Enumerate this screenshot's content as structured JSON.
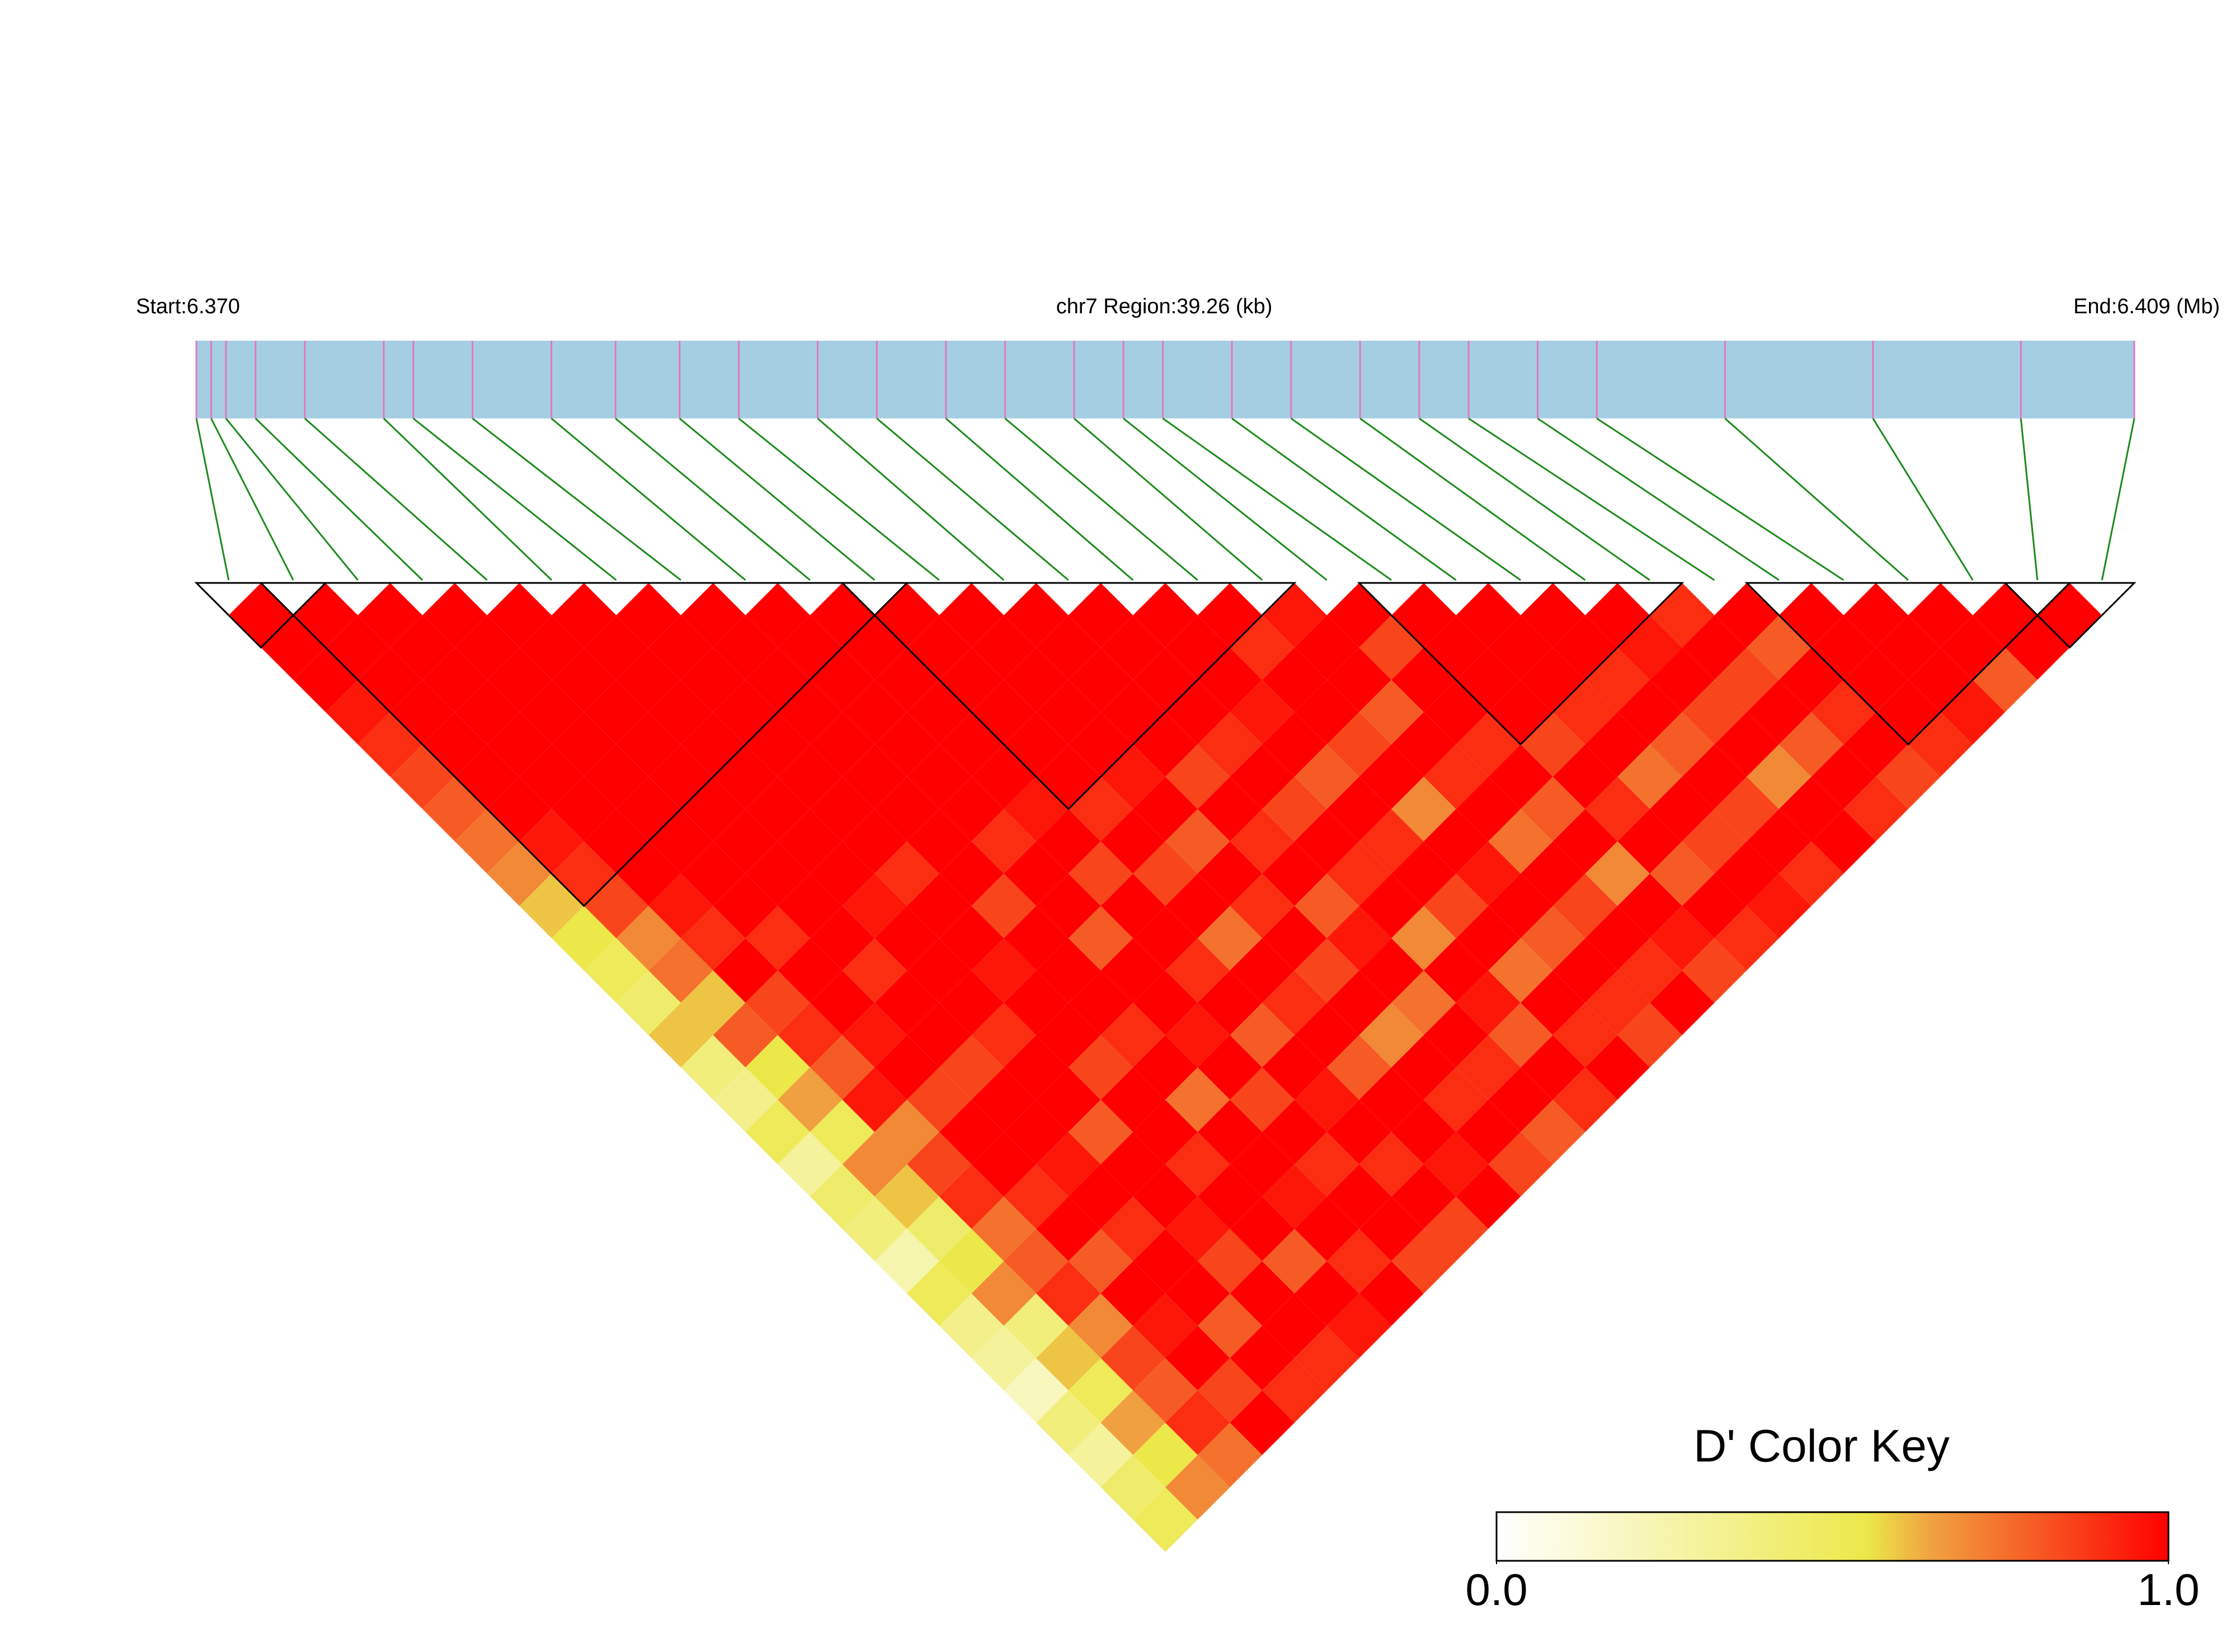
{
  "chart_data": {
    "type": "ld_heatmap",
    "chromosome_label": "chr7 Region:39.26 (kb)",
    "start_label": "Start:6.370",
    "end_label": "End:6.409 (Mb)",
    "xlim": [
      6.37,
      6.4093
    ],
    "positions": [
      6.37,
      6.3703,
      6.3706,
      6.3712,
      6.3722,
      6.3738,
      6.3744,
      6.3756,
      6.3772,
      6.3785,
      6.3798,
      6.381,
      6.3826,
      6.3838,
      6.3852,
      6.3864,
      6.3878,
      6.3888,
      6.3896,
      6.391,
      6.3922,
      6.3936,
      6.3948,
      6.3958,
      6.3972,
      6.3984,
      6.401,
      6.404,
      6.407,
      6.4093
    ],
    "bar_color": "#a6cee3",
    "tick_color": "#e377c2",
    "connector_color": "#1a8a1a",
    "dprime": [
      [
        1,
        1,
        1,
        0.95,
        0.9,
        0.85,
        0.8,
        0.75,
        0.7,
        0.6,
        0.55,
        0.5,
        0.45,
        0.6,
        0.4,
        0.35,
        0.5,
        0.3,
        0.45,
        0.4,
        0.25,
        0.5,
        0.35,
        0.3,
        0.2,
        0.4,
        0.3,
        0.45,
        0.5
      ],
      [
        1,
        1,
        1,
        1,
        1,
        1,
        1,
        0.95,
        0.9,
        0.85,
        0.7,
        0.75,
        0.6,
        0.8,
        0.55,
        0.65,
        0.5,
        0.7,
        0.6,
        0.45,
        0.55,
        0.7,
        0.4,
        0.6,
        0.5,
        0.65,
        0.55,
        0.7
      ],
      [
        1,
        1,
        1,
        1,
        1,
        1,
        1,
        1,
        1,
        0.95,
        0.9,
        1,
        0.85,
        0.9,
        0.8,
        0.95,
        0.7,
        0.85,
        0.9,
        0.75,
        0.8,
        0.9,
        0.7,
        0.85,
        0.8,
        0.9,
        0.75
      ],
      [
        1,
        1,
        1,
        1,
        1,
        1,
        1,
        1,
        1,
        1,
        0.9,
        1,
        1,
        0.95,
        1,
        0.85,
        1,
        1,
        0.9,
        1,
        0.8,
        1,
        0.95,
        1,
        0.85,
        1
      ],
      [
        1,
        1,
        1,
        1,
        1,
        1,
        1,
        1,
        1,
        1,
        1,
        0.9,
        1,
        1,
        0.85,
        1,
        1,
        0.95,
        1,
        0.9,
        1,
        1,
        0.8,
        1,
        0.9
      ],
      [
        1,
        1,
        1,
        1,
        1,
        1,
        1,
        1,
        1,
        0.95,
        1,
        1,
        1,
        0.9,
        1,
        1,
        0.8,
        1,
        1,
        0.95,
        0.85,
        1,
        1,
        0.9
      ],
      [
        1,
        1,
        1,
        1,
        1,
        1,
        1,
        1,
        0.9,
        1,
        1,
        0.95,
        1,
        1,
        0.85,
        1,
        1,
        0.9,
        1,
        1,
        0.8,
        1,
        0.95
      ],
      [
        1,
        1,
        1,
        1,
        1,
        1,
        1,
        1,
        1,
        0.85,
        1,
        1,
        1,
        0.9,
        1,
        0.75,
        1,
        1,
        0.95,
        1,
        0.9,
        1
      ],
      [
        1,
        1,
        1,
        1,
        1,
        1,
        1,
        0.9,
        1,
        1,
        0.8,
        1,
        1,
        0.95,
        1,
        0.85,
        1,
        0.9,
        1,
        1,
        0.85
      ],
      [
        1,
        1,
        1,
        1,
        1,
        1,
        0.95,
        1,
        0.85,
        1,
        1,
        0.9,
        1,
        0.8,
        1,
        0.95,
        1,
        0.9,
        1,
        0.85
      ],
      [
        1,
        1,
        1,
        1,
        1,
        1,
        0.9,
        1,
        0.85,
        1,
        0.75,
        1,
        0.9,
        1,
        0.8,
        1,
        1,
        0.95,
        1
      ],
      [
        1,
        1,
        1,
        1,
        1,
        0.95,
        1,
        0.8,
        1,
        0.9,
        1,
        0.85,
        1,
        0.7,
        1,
        0.9,
        1,
        0.85
      ],
      [
        1,
        1,
        1,
        1,
        1,
        0.85,
        1,
        0.9,
        1,
        0.8,
        0.95,
        1,
        0.75,
        1,
        0.9,
        1,
        0.8
      ],
      [
        1,
        1,
        1,
        1,
        0.9,
        1,
        0.85,
        1,
        0.9,
        1,
        0.7,
        1,
        0.95,
        0.8,
        1,
        0.9
      ],
      [
        1,
        1,
        1,
        0.95,
        1,
        0.8,
        1,
        0.9,
        1,
        0.85,
        1,
        0.75,
        1,
        0.9,
        1
      ],
      [
        1,
        0.9,
        1,
        1,
        0.85,
        1,
        0.7,
        1,
        0.95,
        1,
        0.8,
        1,
        0.9,
        0.85
      ],
      [
        0.95,
        1,
        1,
        0.8,
        1,
        0.9,
        1,
        0.75,
        1,
        0.85,
        1,
        0.9,
        1
      ],
      [
        1,
        0.85,
        1,
        1,
        0.9,
        1,
        0.8,
        1,
        0.7,
        1,
        0.95,
        0.85
      ],
      [
        1,
        1,
        1,
        1,
        0.85,
        1,
        0.9,
        1,
        0.8,
        1,
        0.9
      ],
      [
        1,
        1,
        1,
        0.9,
        1,
        0.75,
        1,
        0.85,
        1,
        0.95
      ],
      [
        1,
        1,
        0.9,
        1,
        0.8,
        1,
        0.85,
        1,
        0.9
      ],
      [
        1,
        0.95,
        1,
        0.85,
        1,
        0.7,
        1,
        1
      ],
      [
        0.9,
        1,
        0.85,
        1,
        0.8,
        1,
        0.9
      ],
      [
        1,
        0.8,
        1,
        0.9,
        1,
        0.85
      ],
      [
        1,
        1,
        1,
        1,
        0.9
      ],
      [
        1,
        1,
        1,
        0.95
      ],
      [
        1,
        1,
        0.8
      ],
      [
        1,
        1
      ],
      [
        1
      ]
    ],
    "blocks": [
      [
        0,
        1
      ],
      [
        1,
        10
      ],
      [
        10,
        16
      ],
      [
        18,
        22
      ],
      [
        24,
        28
      ],
      [
        28,
        29
      ]
    ],
    "color_stops": [
      [
        0,
        "#ffffff"
      ],
      [
        0.55,
        "#ece84a"
      ],
      [
        0.65,
        "#f0a040"
      ],
      [
        1,
        "#ff0000"
      ]
    ],
    "key_title": "D' Color Key",
    "key_lim": [
      0,
      1
    ],
    "key_ticks": [
      {
        "value": 0,
        "label": "0.0"
      },
      {
        "value": 1,
        "label": "1.0"
      }
    ]
  }
}
